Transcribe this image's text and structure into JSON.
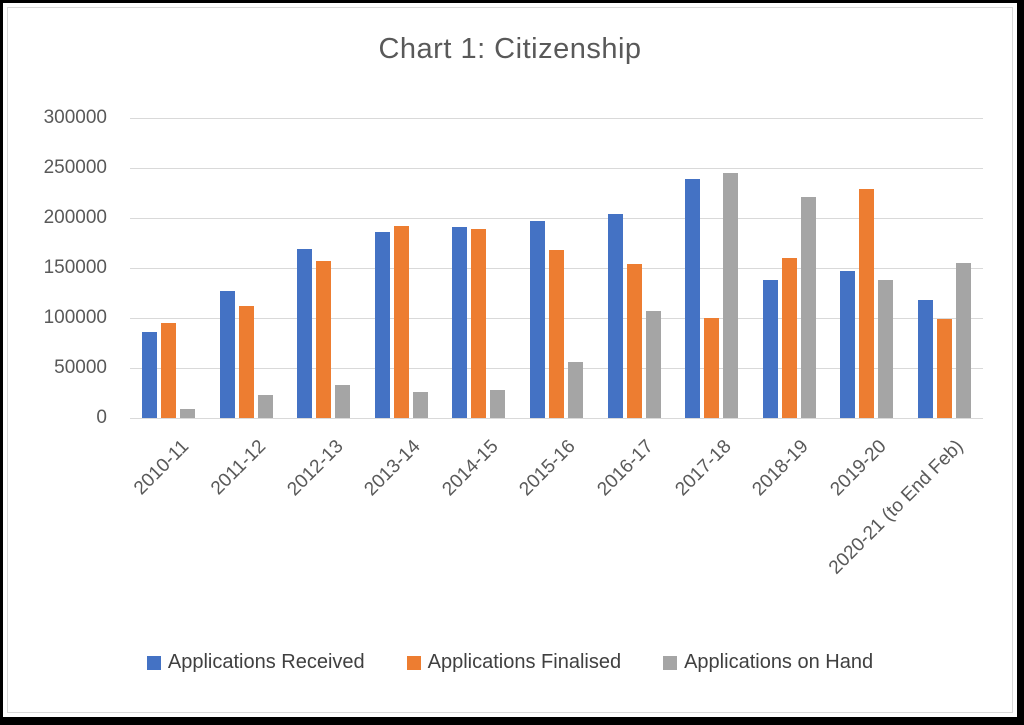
{
  "chart_data": {
    "type": "bar",
    "title": "Chart 1: Citizenship",
    "categories": [
      "2010-11",
      "2011-12",
      "2012-13",
      "2013-14",
      "2014-15",
      "2015-16",
      "2016-17",
      "2017-18",
      "2018-19",
      "2019-20",
      "2020-21 (to End Feb)"
    ],
    "series": [
      {
        "name": "Applications Received",
        "color": "#4472C4",
        "values": [
          86000,
          127000,
          169000,
          186000,
          191000,
          197000,
          204000,
          239000,
          138000,
          147000,
          118000
        ]
      },
      {
        "name": "Applications Finalised",
        "color": "#ED7D31",
        "values": [
          95000,
          112000,
          157000,
          192000,
          189000,
          168000,
          154000,
          100000,
          160000,
          229000,
          99000
        ]
      },
      {
        "name": "Applications on Hand",
        "color": "#A5A5A5",
        "values": [
          9000,
          23000,
          33000,
          26000,
          28000,
          56000,
          107000,
          245000,
          221000,
          138000,
          155000
        ]
      }
    ],
    "xlabel": "",
    "ylabel": "",
    "ylim": [
      0,
      300000
    ],
    "ytick_step": 50000,
    "ytick_labels": [
      "300000",
      "250000",
      "200000",
      "150000",
      "100000",
      "50000",
      "0"
    ],
    "grid": true,
    "legend_position": "bottom",
    "colors": {
      "frame": "#000000",
      "background": "#FFFFFF",
      "chart_border": "#D9D9D9",
      "gridline": "#D9D9D9",
      "axis_text": "#595959",
      "title_text": "#595959",
      "legend_text": "#404040"
    }
  }
}
